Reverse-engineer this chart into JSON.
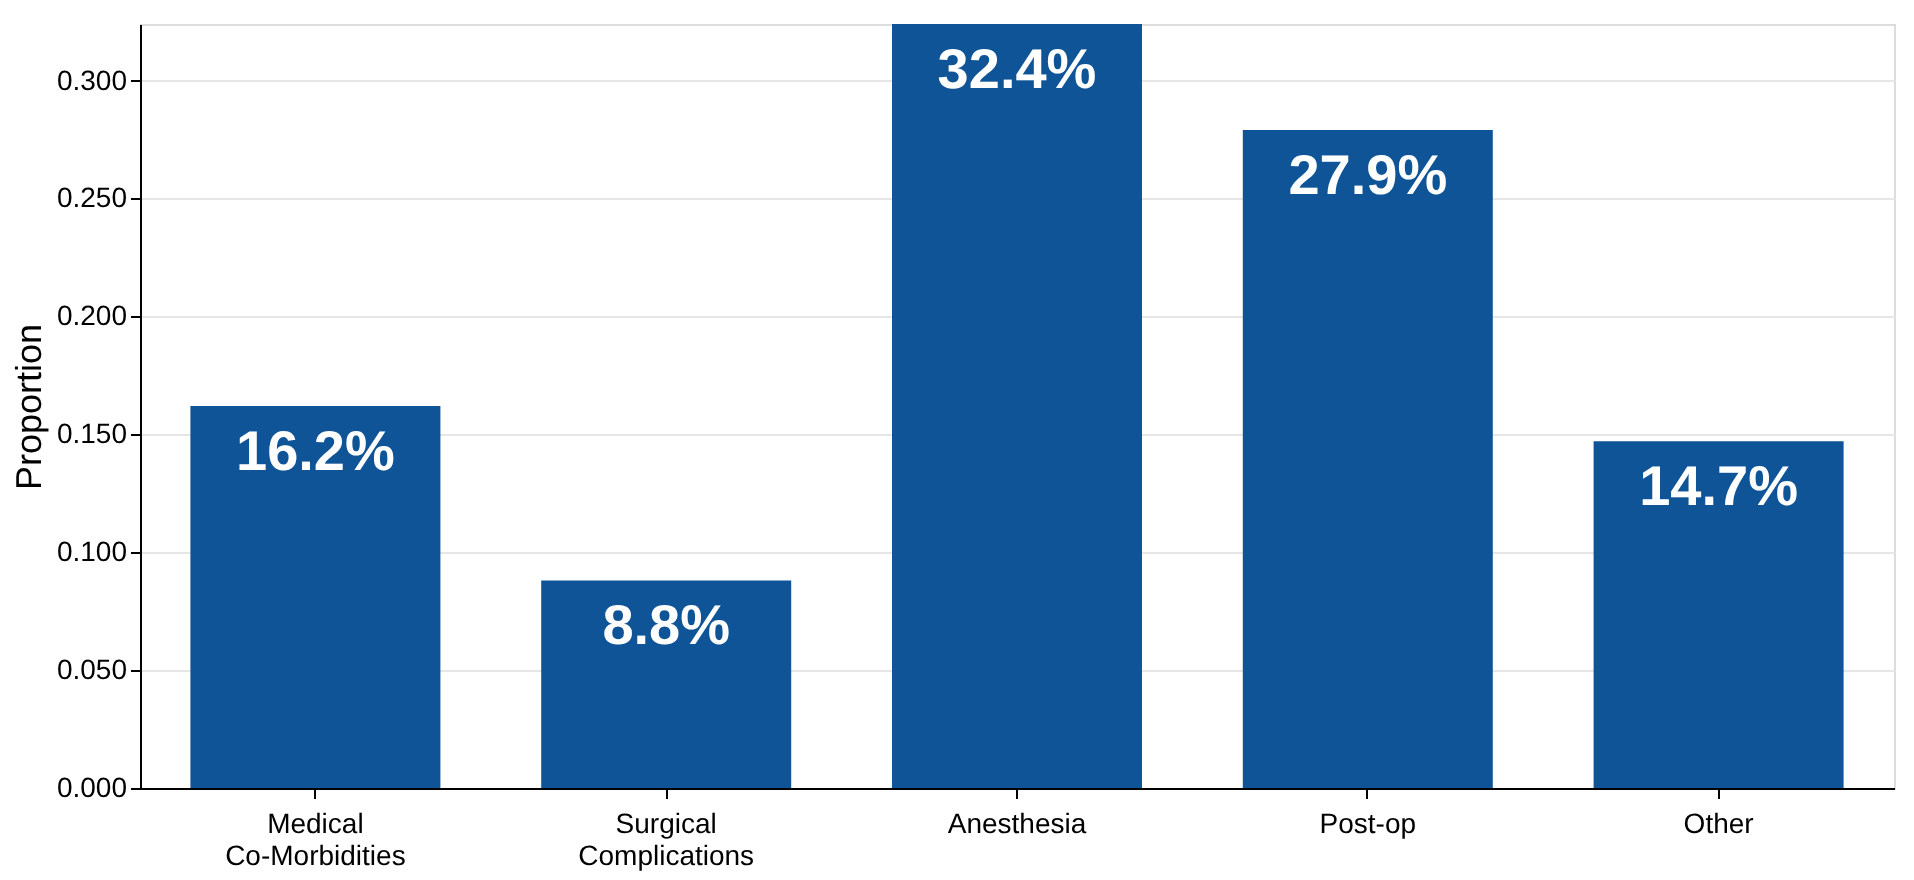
{
  "chart_data": {
    "type": "bar",
    "ylabel": "Proportion",
    "categories": [
      "Medical Co-Morbidities",
      "Surgical Complications",
      "Anesthesia",
      "Post-op",
      "Other"
    ],
    "values": [
      0.162,
      0.088,
      0.324,
      0.279,
      0.147
    ],
    "value_labels": [
      "16.2%",
      "8.8%",
      "32.4%",
      "27.9%",
      "14.7%"
    ],
    "color": "#0f5497",
    "ylim": [
      0,
      0.324
    ],
    "yticks": [
      {
        "value": 0,
        "label": "0.000"
      },
      {
        "value": 0.05,
        "label": "0.050"
      },
      {
        "value": 0.1,
        "label": "0.100"
      },
      {
        "value": 0.15,
        "label": "0.150"
      },
      {
        "value": 0.2,
        "label": "0.200"
      },
      {
        "value": 0.25,
        "label": "0.250"
      },
      {
        "value": 0.3,
        "label": "0.300"
      }
    ],
    "grid": "y"
  }
}
